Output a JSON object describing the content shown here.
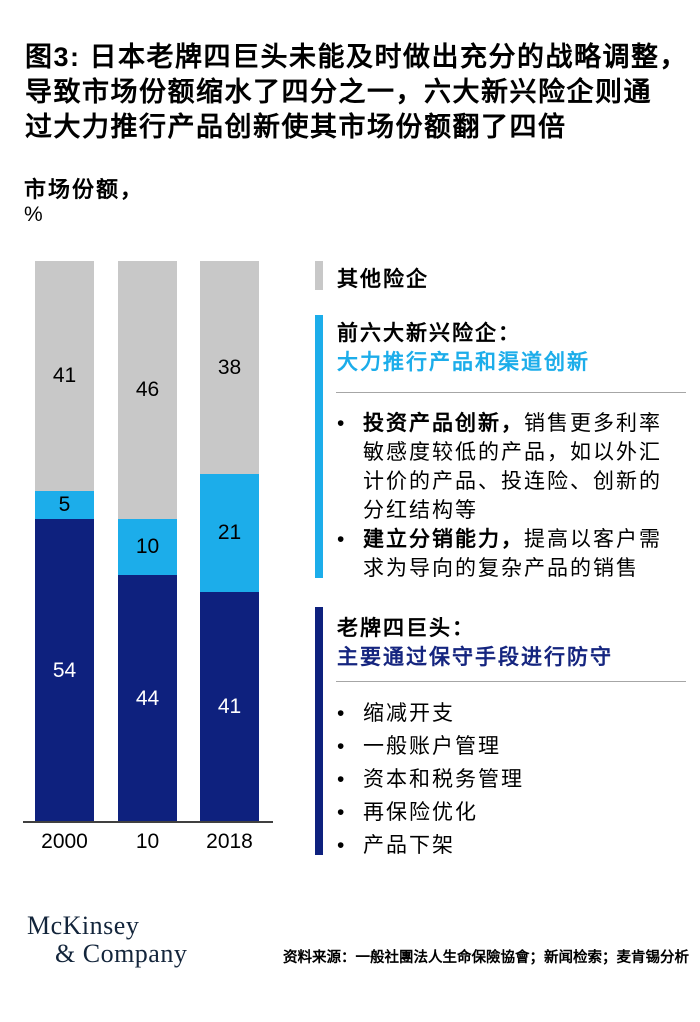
{
  "title_lines": [
    "图3: 日本老牌四巨头未能及时做出充分的战略调整，",
    "导致市场份额缩水了四分之一，六大新兴险企则通",
    "过大力推行产品创新使其市场份额翻了四倍"
  ],
  "subtitle": "市场份额，",
  "unit_label": "%",
  "bullet_char": "•",
  "chart_data": {
    "type": "bar",
    "stacked": true,
    "title": "市场份额，%",
    "categories": [
      "2000",
      "10",
      "2018"
    ],
    "series": [
      {
        "name": "老牌四巨头",
        "role": "incumbents",
        "values": [
          54,
          44,
          41
        ],
        "color": "#0E217E",
        "label_color": "#FFFFFF"
      },
      {
        "name": "前六大新兴险企",
        "role": "emerging",
        "values": [
          5,
          10,
          21
        ],
        "color": "#1CADEA",
        "label_color": "#000000"
      },
      {
        "name": "其他险企",
        "role": "others",
        "values": [
          41,
          46,
          38
        ],
        "color": "#C8C8C8",
        "label_color": "#000000"
      }
    ],
    "ylim": [
      0,
      100
    ],
    "legend_position": "right",
    "grid": false
  },
  "legend": {
    "others_label": "其他险企",
    "emerging": {
      "title": "前六大新兴险企：",
      "subtitle": "大力推行产品和渠道创新",
      "bullets": [
        {
          "bold": "投资产品创新，",
          "line1_rest": "销售更多利率",
          "wrap_lines": [
            "敏感度较低的产品，如以外汇",
            "计价的产品、投连险、创新的",
            "分红结构等"
          ]
        },
        {
          "bold": "建立分销能力，",
          "line1_rest": "提高以客户需",
          "wrap_lines": [
            "求为导向的复杂产品的销售"
          ]
        }
      ]
    },
    "incumbents": {
      "title": "老牌四巨头：",
      "subtitle": "主要通过保守手段进行防守",
      "bullets": [
        "缩减开支",
        "一般账户管理",
        "资本和税务管理",
        "再保险优化",
        "产品下架"
      ]
    }
  },
  "footer": {
    "logo_line1": "McKinsey",
    "logo_line2": "& Company",
    "source": "资料来源：一般社團法人生命保險協會；新闻检索；麦肯锡分析"
  },
  "colors": {
    "incumbents_navy": "#0E217E",
    "emerging_cyan": "#1CADEA",
    "others_gray": "#C8C8C8",
    "accent_text_cyan": "#1CADEA",
    "accent_text_navy": "#15257F",
    "axis_line": "#404040",
    "divider_gray": "#A6A6A6",
    "logo_navy": "#13253B"
  }
}
